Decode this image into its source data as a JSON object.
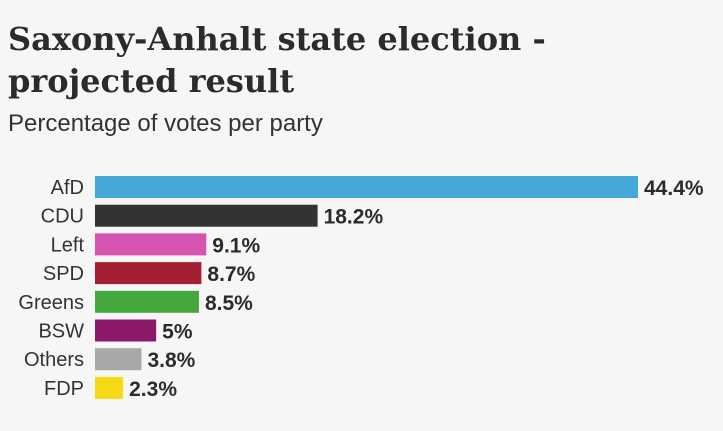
{
  "chart_data": {
    "type": "bar",
    "orientation": "horizontal",
    "title": "Saxony-Anhalt state election - projected result",
    "subtitle": "Percentage of votes per party",
    "categories": [
      "AfD",
      "CDU",
      "Left",
      "SPD",
      "Greens",
      "BSW",
      "Others",
      "FDP"
    ],
    "values": [
      44.4,
      18.2,
      9.1,
      8.7,
      8.5,
      5,
      3.8,
      2.3
    ],
    "value_labels": [
      "44.4%",
      "18.2%",
      "9.1%",
      "8.7%",
      "8.5%",
      "5%",
      "3.8%",
      "2.3%"
    ],
    "colors": [
      "#46a8d8",
      "#333333",
      "#d454b0",
      "#a41e34",
      "#46a83c",
      "#8b1a6b",
      "#a8a8a8",
      "#f5d915"
    ],
    "xlabel": "",
    "ylabel": "",
    "xlim": [
      0,
      44.4
    ],
    "grid": false,
    "legend": "none"
  }
}
